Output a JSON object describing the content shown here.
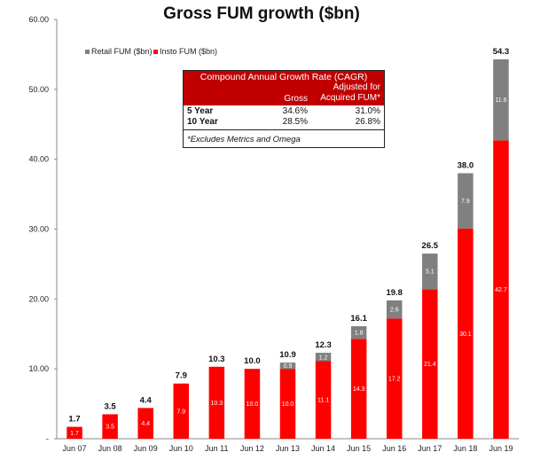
{
  "chart_data": {
    "type": "bar",
    "stacked": true,
    "title": "Gross FUM growth ($bn)",
    "categories": [
      "Jun 07",
      "Jun 08",
      "Jun 09",
      "Jun 10",
      "Jun 11",
      "Jun 12",
      "Jun 13",
      "Jun 14",
      "Jun 15",
      "Jun 16",
      "Jun 17",
      "Jun 18",
      "Jun 19"
    ],
    "series": [
      {
        "name": "Insto FUM ($bn)",
        "color": "#ff0000",
        "values": [
          1.7,
          3.5,
          4.4,
          7.9,
          10.3,
          10.0,
          10.0,
          11.1,
          14.3,
          17.2,
          21.4,
          30.1,
          42.7
        ]
      },
      {
        "name": "Retail FUM ($bn)",
        "color": "#808080",
        "values": [
          null,
          null,
          null,
          null,
          null,
          null,
          0.9,
          1.2,
          1.8,
          2.6,
          5.1,
          7.9,
          11.6
        ]
      }
    ],
    "segment_labels": {
      "insto": [
        "1.7",
        "3.5",
        "4.4",
        "7.9",
        "10.3",
        "10.0",
        "10.0",
        "11.1",
        "14.3",
        "17.2",
        "21.4",
        "30.1",
        "42.7"
      ],
      "retail": [
        "",
        "",
        "",
        "",
        "",
        "",
        "0.9",
        "1.2",
        "1.8",
        "2.6",
        "5.1",
        "7.9",
        "11.6"
      ]
    },
    "totals": [
      "1.7",
      "3.5",
      "4.4",
      "7.9",
      "10.3",
      "10.0",
      "10.9",
      "12.3",
      "16.1",
      "19.8",
      "26.5",
      "38.0",
      "54.3"
    ],
    "ylim": [
      0,
      60
    ],
    "y_ticks": [
      "-",
      "10.00",
      "20.00",
      "30.00",
      "40.00",
      "50.00",
      "60.00"
    ],
    "y_tick_values": [
      0,
      10,
      20,
      30,
      40,
      50,
      60
    ],
    "grid": false,
    "legend_position": "top-left",
    "legend": [
      "Retail FUM ($bn)",
      "Insto FUM ($bn)"
    ]
  },
  "cagr_table": {
    "title": "Compound Annual Growth Rate (CAGR)",
    "col_gross": "Gross",
    "col_adjusted_line1": "Adjusted for",
    "col_adjusted_line2": "Acquired FUM*",
    "rows": [
      {
        "label": "5 Year",
        "gross": "34.6%",
        "adjusted": "31.0%"
      },
      {
        "label": "10 Year",
        "gross": "28.5%",
        "adjusted": "26.8%"
      }
    ],
    "footnote": "*Excludes Metrics and Omega"
  }
}
